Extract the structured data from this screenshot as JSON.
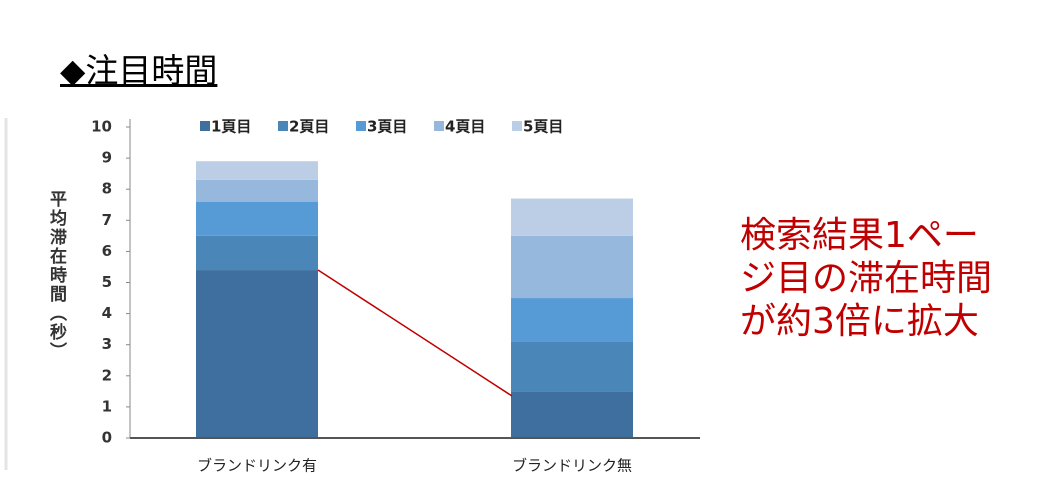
{
  "chart_data": {
    "type": "stacked-bar",
    "title": "◆注目時間",
    "y_label": "平均滞在時間（秒）",
    "annotation": "検索結果1ページ目の滞在時間が約3倍に拡大",
    "categories": [
      "ブランドリンク有",
      "ブランドリンク無"
    ],
    "series": [
      {
        "name": "1頁目",
        "color": "#3e6f9f",
        "values": [
          5.4,
          1.5
        ]
      },
      {
        "name": "2頁目",
        "color": "#4a86b8",
        "values": [
          1.1,
          1.6
        ]
      },
      {
        "name": "3頁目",
        "color": "#569bd5",
        "values": [
          1.1,
          1.4
        ]
      },
      {
        "name": "4頁目",
        "color": "#95b8dc",
        "values": [
          0.7,
          2.0
        ]
      },
      {
        "name": "5頁目",
        "color": "#bbcee5",
        "values": [
          0.6,
          1.2
        ]
      }
    ],
    "ylim": [
      0,
      10
    ],
    "yticks": [
      0,
      1,
      2,
      3,
      4,
      5,
      6,
      7,
      8,
      9,
      10
    ],
    "legend": "top"
  }
}
